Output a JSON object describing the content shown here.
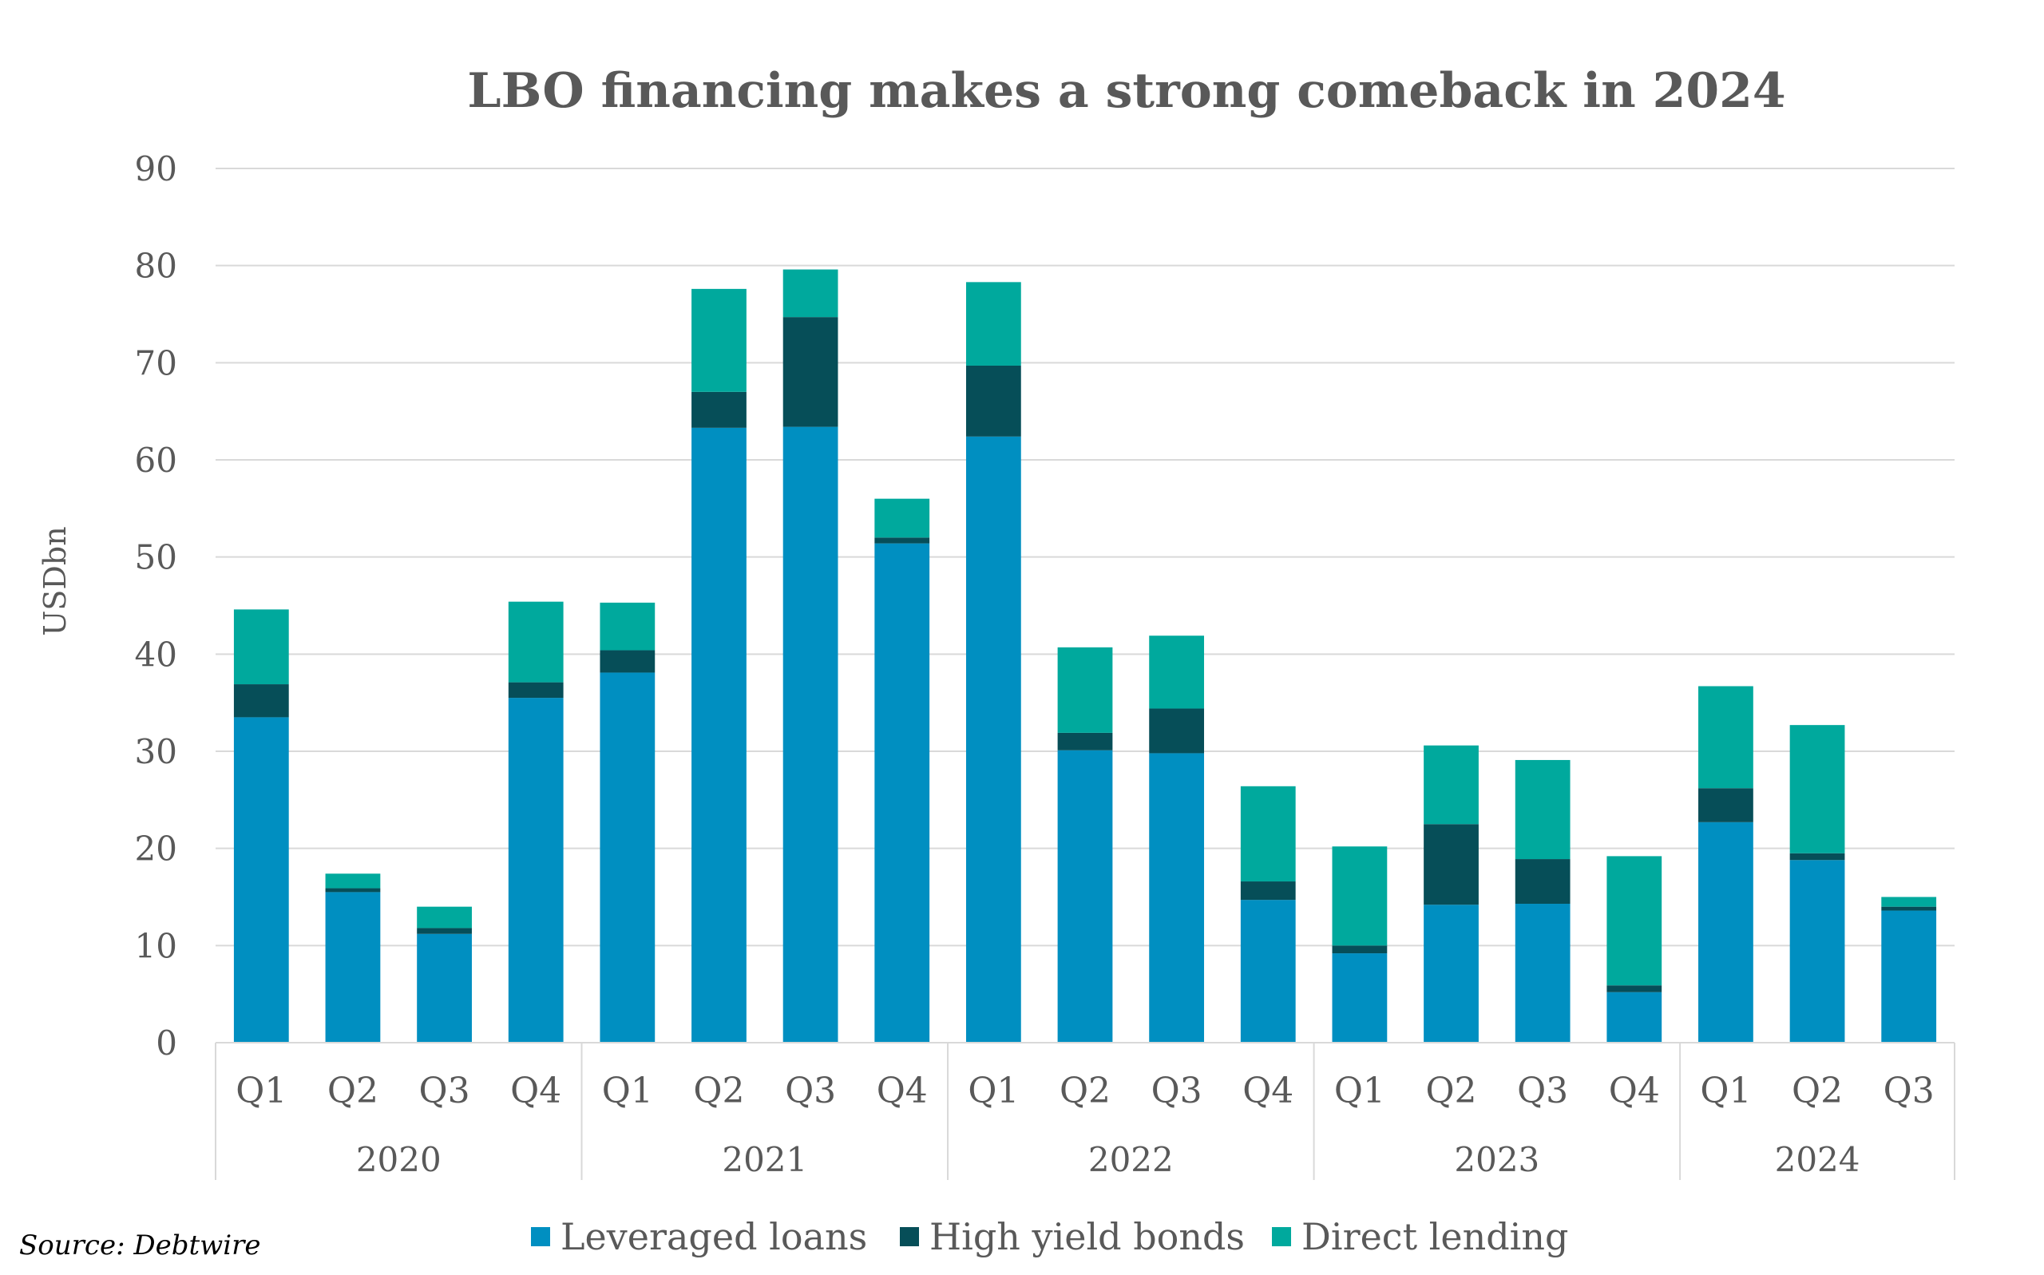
{
  "chart_data": {
    "type": "bar",
    "stacked": true,
    "title": "LBO financing makes a strong comeback in 2024",
    "ylabel": "USDbn",
    "xlabel": "",
    "ylim": [
      0,
      90
    ],
    "yticks": [
      0,
      10,
      20,
      30,
      40,
      50,
      60,
      70,
      80,
      90
    ],
    "grid": true,
    "legend_position": "bottom",
    "source": "Source: Debtwire",
    "groups": [
      {
        "label": "2020",
        "quarters": [
          "Q1",
          "Q2",
          "Q3",
          "Q4"
        ]
      },
      {
        "label": "2021",
        "quarters": [
          "Q1",
          "Q2",
          "Q3",
          "Q4"
        ]
      },
      {
        "label": "2022",
        "quarters": [
          "Q1",
          "Q2",
          "Q3",
          "Q4"
        ]
      },
      {
        "label": "2023",
        "quarters": [
          "Q1",
          "Q2",
          "Q3",
          "Q4"
        ]
      },
      {
        "label": "2024",
        "quarters": [
          "Q1",
          "Q2",
          "Q3"
        ]
      }
    ],
    "series": [
      {
        "name": "Leveraged loans",
        "color": "#008fc1",
        "values": [
          33.5,
          15.5,
          11.2,
          35.5,
          38.1,
          63.3,
          63.4,
          51.4,
          62.4,
          30.1,
          29.8,
          14.7,
          9.2,
          14.2,
          14.3,
          5.2,
          22.7,
          18.8,
          13.6
        ]
      },
      {
        "name": "High yield bonds",
        "color": "#064e58",
        "values": [
          3.4,
          0.4,
          0.6,
          1.6,
          2.3,
          3.7,
          11.3,
          0.6,
          7.3,
          1.8,
          4.6,
          1.9,
          0.8,
          8.3,
          4.6,
          0.7,
          3.5,
          0.7,
          0.4
        ]
      },
      {
        "name": "Direct lending",
        "color": "#00a99d",
        "values": [
          7.7,
          1.5,
          2.2,
          8.3,
          4.9,
          10.6,
          4.9,
          4.0,
          8.6,
          8.8,
          7.5,
          9.8,
          10.2,
          8.1,
          10.2,
          13.3,
          10.5,
          13.2,
          1.0
        ]
      }
    ]
  }
}
